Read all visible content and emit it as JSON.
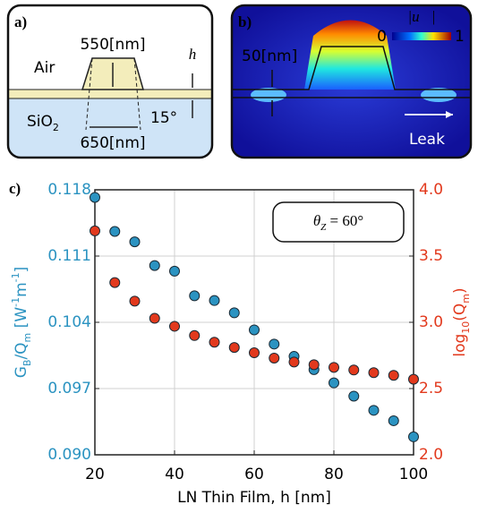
{
  "panel_a": {
    "label": "a)",
    "air": "Air",
    "top_width": "550[nm]",
    "height": "h",
    "substrate": [
      {
        "text": "SiO"
      },
      {
        "text": "2",
        "shift": "sub"
      }
    ],
    "angle": "15°",
    "bottom_width": "650[nm]"
  },
  "panel_b": {
    "label": "b)",
    "colorbar_title": "|u⃗|",
    "colorbar_ticks": [
      "0",
      "1"
    ],
    "film": "50[nm]",
    "leak": "Leak"
  },
  "chart_data": {
    "type": "scatter",
    "panel_label": "c)",
    "annotation": [
      {
        "text": "θ",
        "style": "italic"
      },
      {
        "text": "Z",
        "shift": "sub",
        "style": "italic"
      },
      {
        "text": " = 60°"
      }
    ],
    "xlabel": "LN Thin Film, h [nm]",
    "ylabel": [
      {
        "text": "G"
      },
      {
        "text": "B",
        "shift": "sub"
      },
      {
        "text": "/Q"
      },
      {
        "text": "m",
        "shift": "sub"
      },
      {
        "text": " [W"
      },
      {
        "text": "-1",
        "shift": "super"
      },
      {
        "text": "m"
      },
      {
        "text": "-1",
        "shift": "super"
      },
      {
        "text": "]"
      }
    ],
    "y2label": [
      {
        "text": "log"
      },
      {
        "text": "10",
        "shift": "sub"
      },
      {
        "text": "(Q"
      },
      {
        "text": "m",
        "shift": "sub"
      },
      {
        "text": ")"
      }
    ],
    "x": [
      20,
      25,
      30,
      35,
      40,
      45,
      50,
      55,
      60,
      65,
      70,
      75,
      80,
      85,
      90,
      95,
      100
    ],
    "xlim": [
      20,
      100
    ],
    "xticks": [
      20,
      40,
      60,
      80,
      100
    ],
    "ylim": [
      0.09,
      0.118
    ],
    "yticks": [
      {
        "value": 0.09,
        "label": "0.090"
      },
      0.097,
      0.104,
      0.111,
      0.118
    ],
    "y2lim": [
      2,
      4
    ],
    "y2ticks": [
      {
        "value": 2,
        "label": "2.0"
      },
      2.5,
      {
        "value": 3,
        "label": "3.0"
      },
      3.5,
      {
        "value": 4,
        "label": "4.0"
      }
    ],
    "grid": true,
    "series": [
      {
        "color": "#2b93c1",
        "axis": "y",
        "values": [
          0.1172,
          0.1136,
          0.1125,
          0.11,
          0.1094,
          0.1068,
          0.1063,
          0.105,
          0.1032,
          0.1017,
          0.1004,
          0.099,
          0.0976,
          0.0962,
          0.0947,
          0.0936,
          0.0919
        ]
      },
      {
        "color": "#e2391d",
        "axis": "y2",
        "values": [
          3.69,
          3.3,
          3.16,
          3.03,
          2.97,
          2.9,
          2.85,
          2.81,
          2.77,
          2.73,
          2.7,
          2.68,
          2.66,
          2.64,
          2.62,
          2.6,
          2.57
        ]
      }
    ]
  }
}
